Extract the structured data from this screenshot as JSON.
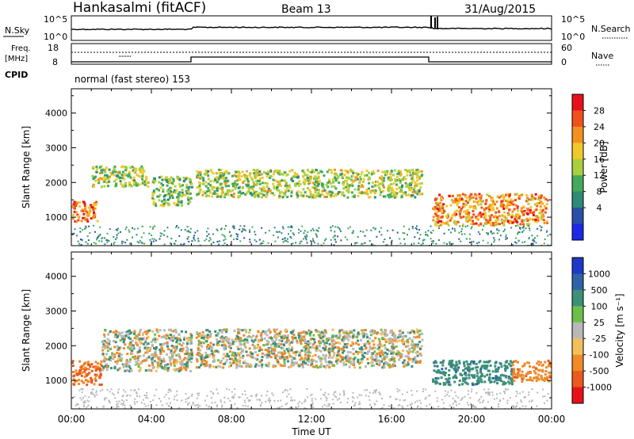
{
  "header": {
    "station": "Hankasalmi (fitACF)",
    "beam": "Beam 13",
    "date": "31/Aug/2015"
  },
  "top_panels": {
    "nsky_label": "N.Sky",
    "nsky_ticks": [
      "10^5",
      "10^0"
    ],
    "nsearch_label": "N.Search",
    "nsearch_ticks": [
      "10^5",
      "10^0"
    ],
    "freq_label_line1": "Freq.",
    "freq_label_line2": "[MHz]",
    "freq_ticks": [
      "18",
      "8"
    ],
    "nave_label": "Nave",
    "nave_ticks": [
      "60",
      "0"
    ],
    "cpid_label": "CPID",
    "cpid_text": "normal (fast stereo) 153"
  },
  "chart_data": [
    {
      "type": "heatmap",
      "panel": "power",
      "xlabel": "",
      "ylabel": "Slant Range [km]",
      "x_ticks": [
        "00:00",
        "04:00",
        "08:00",
        "12:00",
        "16:00",
        "20:00",
        "00:00"
      ],
      "y_ticks": [
        1000,
        2000,
        3000,
        4000
      ],
      "ylim": [
        180,
        4700
      ],
      "xlim_hours": [
        0,
        24
      ],
      "colorbar": {
        "label": "Power [dB]",
        "ticks": [
          "28",
          "24",
          "20",
          "16",
          "12",
          "8",
          "4"
        ],
        "colors": [
          "#e8111a",
          "#f0501c",
          "#f39120",
          "#f2c72a",
          "#a8cf3e",
          "#44a95a",
          "#2d8b76",
          "#2a4fa6",
          "#1d27e6"
        ]
      },
      "structures": [
        {
          "from_h": 0.0,
          "to_h": 1.3,
          "range_km": [
            900,
            1500
          ],
          "value_db": 26
        },
        {
          "from_h": 1.0,
          "to_h": 3.8,
          "range_km": [
            1900,
            2500
          ],
          "value_db": 16
        },
        {
          "from_h": 4.0,
          "to_h": 6.0,
          "range_km": [
            1350,
            2200
          ],
          "value_db": 14
        },
        {
          "from_h": 6.2,
          "to_h": 17.5,
          "range_km": [
            1600,
            2400
          ],
          "value_db": 16
        },
        {
          "from_h": 18.0,
          "to_h": 23.8,
          "range_km": [
            800,
            1700
          ],
          "value_db": 24
        }
      ]
    },
    {
      "type": "heatmap",
      "panel": "velocity",
      "xlabel": "Time UT",
      "ylabel": "Slant Range [km]",
      "x_ticks": [
        "00:00",
        "04:00",
        "08:00",
        "12:00",
        "16:00",
        "20:00",
        "00:00"
      ],
      "y_ticks": [
        1000,
        2000,
        3000,
        4000
      ],
      "ylim": [
        180,
        4700
      ],
      "xlim_hours": [
        0,
        24
      ],
      "colorbar": {
        "label": "Velocity [m s⁻¹]",
        "ticks": [
          "1000",
          "500",
          "100",
          "25",
          "-25",
          "-100",
          "-500",
          "-1000"
        ],
        "colors": [
          "#1e38c8",
          "#2f63a8",
          "#3c8f78",
          "#6cc04a",
          "#b8b8b8",
          "#f2c05a",
          "#f08a28",
          "#ea5a1c",
          "#e8111a"
        ]
      },
      "structures": [
        {
          "from_h": 0.0,
          "to_h": 1.5,
          "range_km": [
            900,
            1600
          ],
          "velocity": -300
        },
        {
          "from_h": 1.5,
          "to_h": 6.0,
          "range_km": [
            1300,
            2500
          ],
          "velocity": 0
        },
        {
          "from_h": 6.2,
          "to_h": 17.5,
          "range_km": [
            1400,
            2500
          ],
          "velocity": 0
        },
        {
          "from_h": 18.0,
          "to_h": 22.0,
          "range_km": [
            900,
            1600
          ],
          "velocity": 200
        },
        {
          "from_h": 22.0,
          "to_h": 24.0,
          "range_km": [
            1000,
            1600
          ],
          "velocity": -200
        }
      ]
    }
  ]
}
